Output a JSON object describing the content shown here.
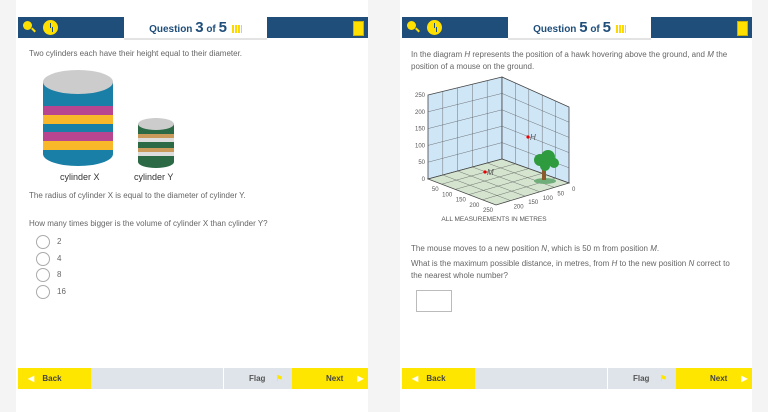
{
  "left": {
    "header": {
      "question_word": "Question",
      "current": "3",
      "of_word": "of",
      "total": "5"
    },
    "intro": "Two cylinders each have their height equal to their diameter.",
    "cylinder_x_label": "cylinder X",
    "cylinder_y_label": "cylinder Y",
    "statement": "The radius of cylinder X is equal to the diameter of cylinder Y.",
    "question": "How many times bigger is the volume of cylinder X than cylinder Y?",
    "options": [
      "2",
      "4",
      "8",
      "16"
    ],
    "footer": {
      "back": "Back",
      "flag": "Flag",
      "next": "Next"
    }
  },
  "right": {
    "header": {
      "question_word": "Question",
      "current": "5",
      "of_word": "of",
      "total": "5"
    },
    "intro_1": "In the diagram ",
    "intro_h": "H",
    "intro_2": " represents the position of a hawk hovering above the ground, and ",
    "intro_m": "M",
    "intro_3": " the position of a mouse on the ground.",
    "diagram": {
      "vertical_ticks": [
        "0",
        "50",
        "100",
        "150",
        "200",
        "250"
      ],
      "left_floor_ticks": [
        "50",
        "100",
        "150",
        "200",
        "250"
      ],
      "right_floor_ticks": [
        "200",
        "150",
        "100",
        "50",
        "0"
      ],
      "point_h": "H",
      "point_m": "M",
      "caption": "ALL MEASUREMENTS IN METRES"
    },
    "statement_1": "The mouse moves to a new position ",
    "statement_n": "N",
    "statement_2": ", which is 50 m from position ",
    "statement_m": "M",
    "statement_3": ".",
    "question_1": "What is the maximum possible distance, in metres, from ",
    "question_h": "H",
    "question_2": " to the new position ",
    "question_n": "N",
    "question_3": " correct to the nearest whole number?",
    "answer_value": "",
    "footer": {
      "back": "Back",
      "flag": "Flag",
      "next": "Next"
    }
  },
  "colors": {
    "header_blue": "#1f4e7a",
    "accent_yellow": "#ffe600",
    "footer_grey": "#dfe4ea"
  }
}
